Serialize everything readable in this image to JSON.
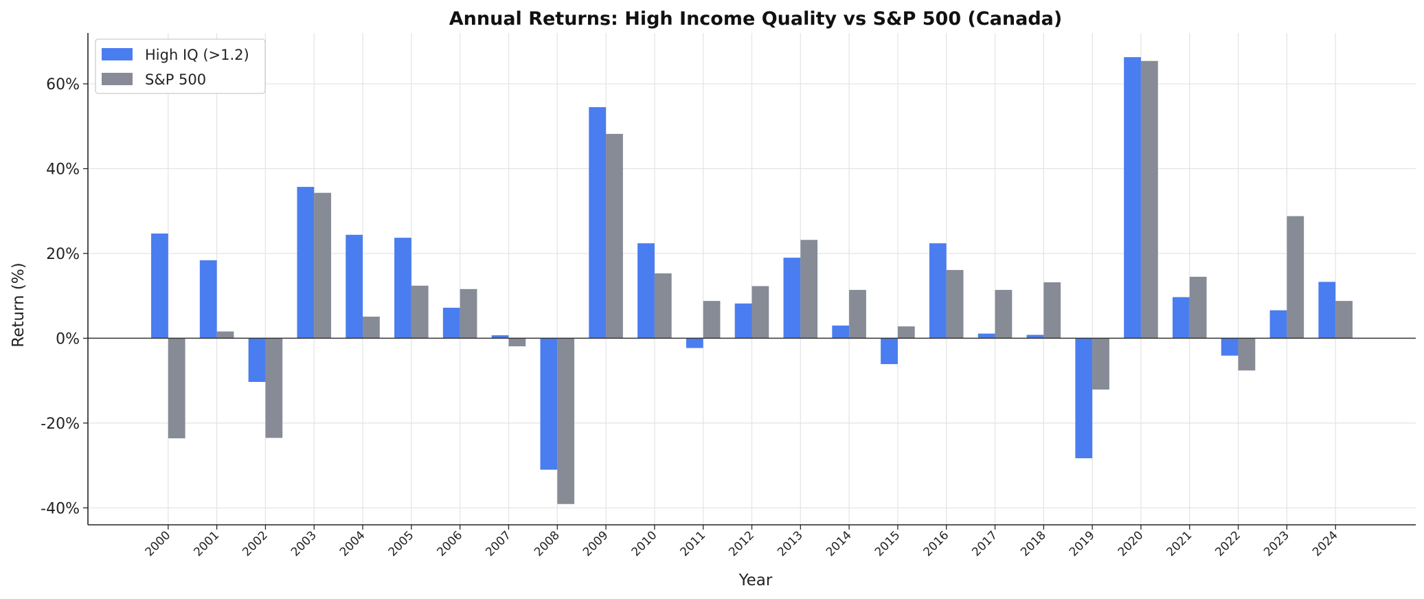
{
  "chart_data": {
    "type": "bar",
    "title": "Annual Returns: High Income Quality vs S&P 500 (Canada)",
    "xlabel": "Year",
    "ylabel": "Return (%)",
    "ylim": [
      -44,
      72
    ],
    "yticks": [
      -40,
      -20,
      0,
      20,
      40,
      60
    ],
    "ytick_labels": [
      "-40%",
      "-20%",
      "0%",
      "20%",
      "40%",
      "60%"
    ],
    "grid": true,
    "legend_position": "upper-left",
    "categories": [
      "2000",
      "2001",
      "2002",
      "2003",
      "2004",
      "2005",
      "2006",
      "2007",
      "2008",
      "2009",
      "2010",
      "2011",
      "2012",
      "2013",
      "2014",
      "2015",
      "2016",
      "2017",
      "2018",
      "2019",
      "2020",
      "2021",
      "2022",
      "2023",
      "2024"
    ],
    "series": [
      {
        "name": "High IQ (>1.2)",
        "color": "#4a7def",
        "values": [
          24.7,
          18.4,
          -10.3,
          35.7,
          24.4,
          23.7,
          7.2,
          0.7,
          -31.0,
          54.5,
          22.4,
          -2.3,
          8.2,
          19.0,
          3.0,
          -6.1,
          22.4,
          1.1,
          0.8,
          -28.3,
          66.3,
          9.7,
          -4.1,
          6.6,
          13.3
        ]
      },
      {
        "name": "S&P 500",
        "color": "#868b96",
        "values": [
          -23.6,
          1.6,
          -23.5,
          34.3,
          5.1,
          12.4,
          11.6,
          -1.9,
          -39.1,
          48.2,
          15.3,
          8.8,
          12.3,
          23.2,
          11.4,
          2.8,
          16.1,
          11.4,
          13.2,
          -12.1,
          65.4,
          14.5,
          -7.6,
          28.8,
          8.8
        ]
      }
    ]
  }
}
